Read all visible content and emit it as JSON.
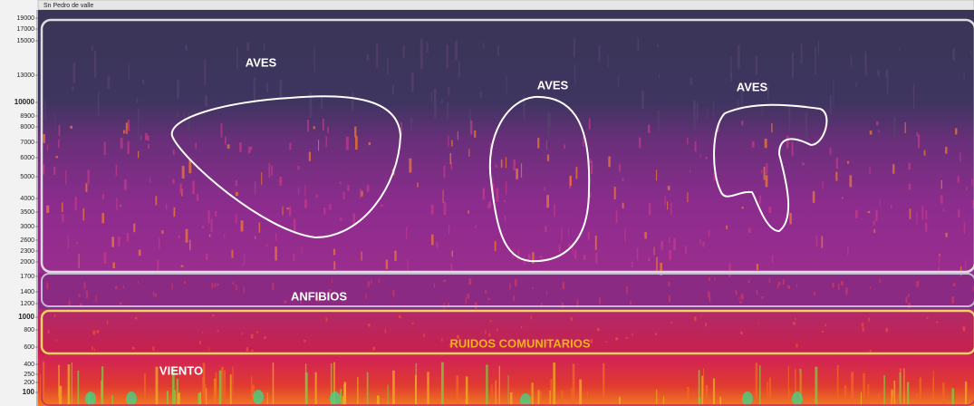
{
  "header": {
    "title": "Sn Pedro de valle"
  },
  "y_axis": {
    "labels": [
      "19000",
      "17000",
      "15000",
      "13000",
      "10000",
      "8900",
      "8000",
      "7000",
      "6000",
      "5000",
      "4000",
      "3500",
      "3000",
      "2600",
      "2300",
      "2000",
      "1700",
      "1400",
      "1200",
      "1000",
      "800",
      "600",
      "400",
      "250",
      "200",
      "100"
    ]
  },
  "annotations": [
    "AVES",
    "AVES",
    "AVES",
    "ANFIBIOS",
    "RUIDOS COMUNITARIOS",
    "VIENTO"
  ]
}
